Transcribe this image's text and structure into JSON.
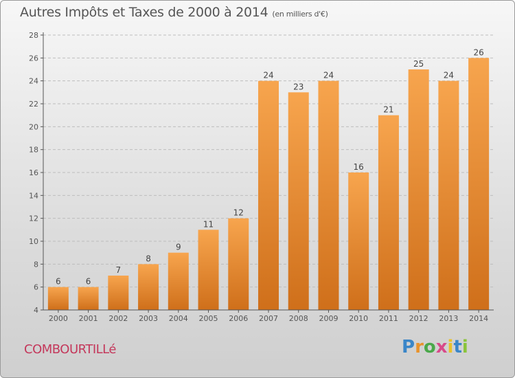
{
  "header": {
    "title": "Autres Impôts et Taxes de 2000 à 2014",
    "unit": "(en milliers d'€)"
  },
  "location": {
    "name": "COMBOURTILLé"
  },
  "logo": {
    "letters": [
      {
        "char": "P",
        "color": "#3a86c8"
      },
      {
        "char": "r",
        "color": "#e8932c"
      },
      {
        "char": "o",
        "color": "#4aa84a"
      },
      {
        "char": "x",
        "color": "#d84a8a"
      },
      {
        "char": "i",
        "color": "#e8c12c"
      },
      {
        "char": "t",
        "color": "#3a86c8"
      },
      {
        "char": "i",
        "color": "#8ac43a"
      }
    ]
  },
  "colors": {
    "bar_light": "#f7a54e",
    "bar_dark": "#cf6f1a",
    "text": "#555555"
  },
  "chart_data": {
    "type": "bar",
    "title": "Autres Impôts et Taxes de 2000 à 2014",
    "categories": [
      "2000",
      "2001",
      "2002",
      "2003",
      "2004",
      "2005",
      "2006",
      "2007",
      "2008",
      "2009",
      "2010",
      "2011",
      "2012",
      "2013",
      "2014"
    ],
    "values": [
      6,
      6,
      7,
      8,
      9,
      11,
      12,
      24,
      23,
      24,
      16,
      21,
      25,
      24,
      26
    ],
    "ylim": [
      4,
      28
    ],
    "yticks": [
      4,
      6,
      8,
      10,
      12,
      14,
      16,
      18,
      20,
      22,
      24,
      26,
      28
    ],
    "grid": true
  }
}
